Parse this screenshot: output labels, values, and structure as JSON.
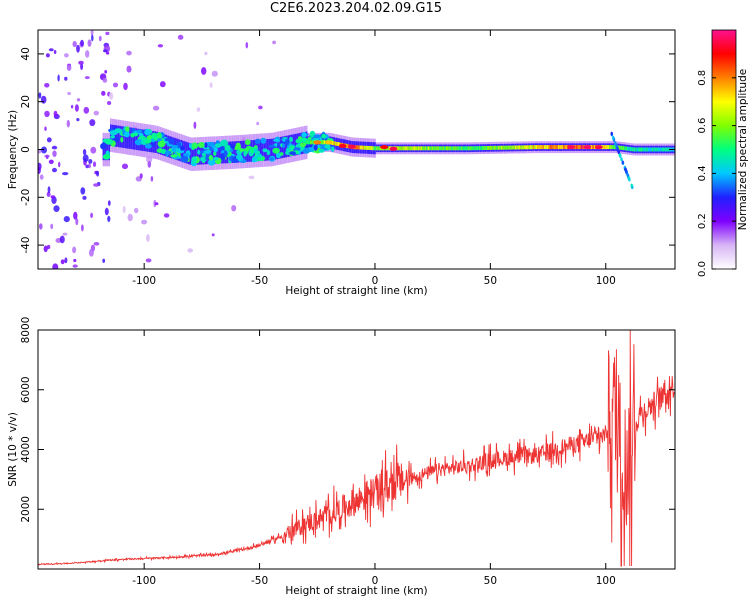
{
  "title": "C2E6.2023.204.02.09.G15",
  "chart_data": [
    {
      "type": "heatmap",
      "xlabel": "Height of straight line (km)",
      "ylabel": "Frequency (Hz)",
      "xlim": [
        -146,
        130
      ],
      "ylim": [
        -50,
        50
      ],
      "xticks": [
        -100,
        -50,
        0,
        50,
        100
      ],
      "yticks": [
        -40,
        -20,
        0,
        20,
        40
      ],
      "colorbar": {
        "label": "Normalized spectral amplitude",
        "range": [
          0,
          1
        ],
        "ticks": [
          0.0,
          0.2,
          0.4,
          0.6,
          0.8
        ],
        "colors": [
          "#ffffff",
          "#d7b5f5",
          "#7f00ff",
          "#2020ff",
          "#00c8ff",
          "#00ff80",
          "#80ff00",
          "#ffff00",
          "#ff8000",
          "#ff0000",
          "#ff1090"
        ]
      },
      "ridge": [
        {
          "x": -115,
          "y": 6,
          "amp": 0.35
        },
        {
          "x": -95,
          "y": 3,
          "amp": 0.45
        },
        {
          "x": -80,
          "y": -2,
          "amp": 0.45
        },
        {
          "x": -60,
          "y": -1,
          "amp": 0.4
        },
        {
          "x": -45,
          "y": 0,
          "amp": 0.4
        },
        {
          "x": -30,
          "y": 3,
          "amp": 0.55
        },
        {
          "x": -20,
          "y": 3,
          "amp": 0.7
        },
        {
          "x": -10,
          "y": 1,
          "amp": 0.9
        },
        {
          "x": 0,
          "y": 0.5,
          "amp": 0.6
        },
        {
          "x": 10,
          "y": 0.5,
          "amp": 0.7
        },
        {
          "x": 40,
          "y": 0.5,
          "amp": 0.55
        },
        {
          "x": 70,
          "y": 1,
          "amp": 0.75
        },
        {
          "x": 90,
          "y": 1,
          "amp": 0.92
        },
        {
          "x": 104,
          "y": 1,
          "amp": 0.6
        },
        {
          "x": 112,
          "y": 0,
          "amp": 0.5
        },
        {
          "x": 130,
          "y": 0,
          "amp": 0.45
        }
      ]
    },
    {
      "type": "line",
      "xlabel": "Height of straight line (km)",
      "ylabel": "SNR (10 * v/v)",
      "xlim": [
        -146,
        130
      ],
      "ylim": [
        0,
        8000
      ],
      "xticks": [
        -100,
        -50,
        0,
        50,
        100
      ],
      "yticks": [
        2000,
        4000,
        6000,
        8000
      ],
      "series": [
        {
          "color": "#ee3333",
          "x": [
            -146,
            -130,
            -115,
            -100,
            -85,
            -70,
            -60,
            -50,
            -40,
            -30,
            -20,
            -10,
            0,
            10,
            20,
            30,
            40,
            50,
            60,
            70,
            80,
            90,
            100,
            103,
            106,
            109,
            112,
            115,
            120,
            125,
            130
          ],
          "y": [
            150,
            200,
            300,
            350,
            400,
            480,
            600,
            800,
            1100,
            1500,
            1800,
            2200,
            2600,
            2900,
            3150,
            3350,
            3450,
            3650,
            3750,
            3800,
            4050,
            4250,
            4500,
            5500,
            4300,
            3300,
            4700,
            5200,
            5500,
            5800,
            6200
          ]
        }
      ]
    }
  ]
}
